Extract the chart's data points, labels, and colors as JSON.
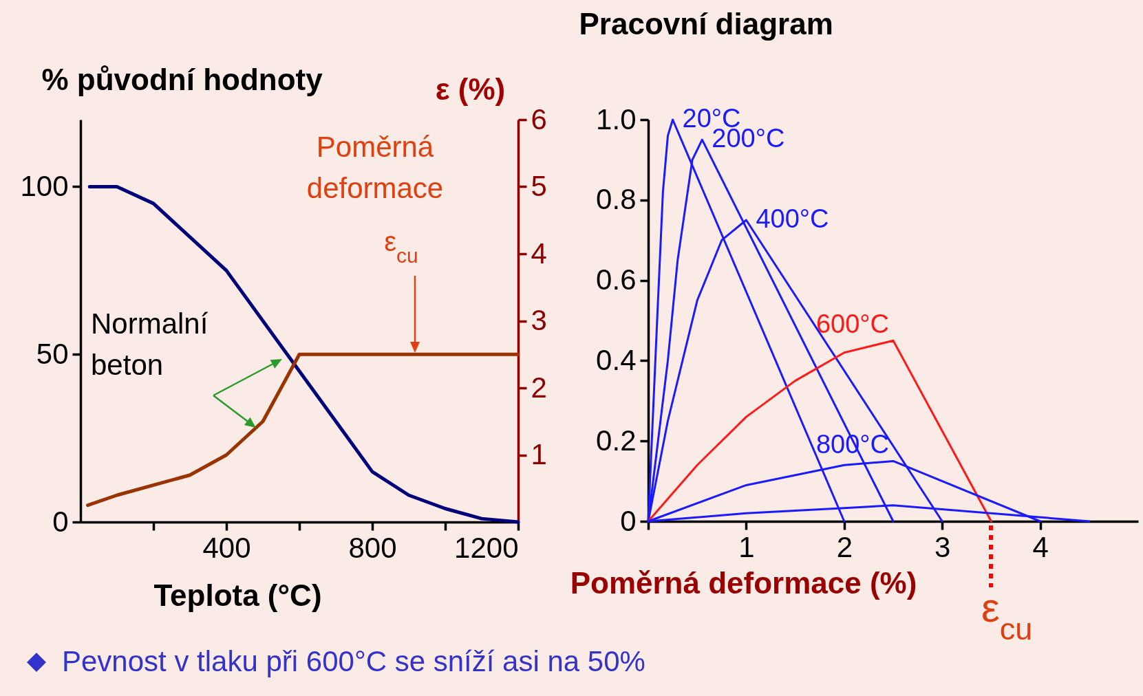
{
  "chart_data": [
    {
      "type": "line",
      "ylabel": "% původní hodnoty",
      "y2label": "ε (%)",
      "xlabel": "Teplota (°C)",
      "x": [
        25,
        100,
        200,
        400,
        800,
        900,
        1000,
        1100,
        1200
      ],
      "series": [
        {
          "color": "#00007a",
          "values": [
            100,
            100,
            95,
            75,
            15,
            8,
            4,
            1,
            0
          ]
        },
        {
          "color": "#993300",
          "axis": "y2",
          "x": [
            20,
            100,
            300,
            400,
            500,
            600,
            1200
          ],
          "values": [
            0.25,
            0.4,
            0.7,
            1.0,
            1.5,
            2.5,
            2.5
          ]
        }
      ],
      "xlim": [
        0,
        1200
      ],
      "xticks": [
        {
          "value": 200,
          "label": null
        },
        400,
        {
          "value": 600,
          "label": null
        },
        800,
        {
          "value": 1000,
          "label": null
        },
        1200
      ],
      "ylim": [
        0,
        120
      ],
      "yticks": [
        0,
        50,
        100
      ],
      "y2lim": [
        0,
        6
      ],
      "y2ticks": [
        1,
        2,
        3,
        4,
        5,
        6
      ],
      "annotations": [
        "ε$_{cu}$",
        "Poměrná deformace",
        "Normalní beton",
        "Pevnost v tlaku při 600°C se sníží asi na 50%"
      ]
    },
    {
      "type": "line",
      "title": "Pracovní diagram",
      "xlabel": "Poměrná deformace (%)",
      "series": [
        {
          "name": "20°C",
          "color": "#1a1aff",
          "x": [
            0,
            0.1,
            0.15,
            0.2,
            0.25,
            2.0
          ],
          "values": [
            0,
            0.55,
            0.82,
            0.96,
            1.0,
            0
          ]
        },
        {
          "name": "200°C",
          "color": "#1a1aff",
          "x": [
            0,
            0.2,
            0.3,
            0.45,
            0.55,
            2.5
          ],
          "values": [
            0,
            0.4,
            0.65,
            0.9,
            0.95,
            0
          ]
        },
        {
          "name": "400°C",
          "color": "#1a1aff",
          "x": [
            0,
            0.2,
            0.5,
            0.75,
            1.0,
            3.0
          ],
          "values": [
            0,
            0.25,
            0.55,
            0.7,
            0.75,
            0
          ]
        },
        {
          "name": "600°C",
          "color": "#ff1a1a",
          "x": [
            0,
            0.5,
            1.0,
            1.5,
            2.0,
            2.5,
            3.5
          ],
          "values": [
            0,
            0.14,
            0.26,
            0.35,
            0.42,
            0.45,
            0
          ]
        },
        {
          "name": "800°C",
          "color": "#1a1aff",
          "x": [
            0,
            1,
            2,
            2.5,
            4.0
          ],
          "values": [
            0,
            0.09,
            0.14,
            0.15,
            0
          ]
        },
        {
          "color": "#1a1aff",
          "x": [
            0,
            1,
            2,
            2.5,
            4.5
          ],
          "values": [
            0,
            0.02,
            0.033,
            0.04,
            0
          ]
        }
      ],
      "xlim": [
        0,
        5
      ],
      "xticks": [
        {
          "value": 0,
          "label": null
        },
        1,
        2,
        3,
        4
      ],
      "ylim": [
        0,
        1
      ],
      "yticks": [
        0,
        0.2,
        0.4,
        0.6,
        0.8,
        {
          "value": 1,
          "label": "1.0"
        }
      ],
      "annotations": [
        "ε$_{cu}$"
      ]
    }
  ]
}
